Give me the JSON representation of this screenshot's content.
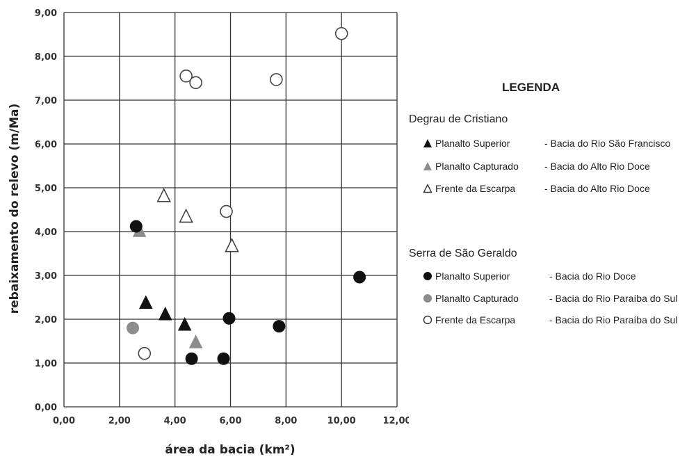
{
  "chart_data": {
    "type": "scatter",
    "xlabel": "área da bacia (km²)",
    "ylabel": "rebaixamento do relevo (m/Ma)",
    "xlim": [
      0,
      12
    ],
    "ylim": [
      0,
      9
    ],
    "x_ticks": [
      "0,00",
      "2,00",
      "4,00",
      "6,00",
      "8,00",
      "10,00",
      "12,00"
    ],
    "y_ticks": [
      "0,00",
      "1,00",
      "2,00",
      "3,00",
      "4,00",
      "5,00",
      "6,00",
      "7,00",
      "8,00",
      "9,00"
    ],
    "grid": true,
    "legend_position": "right",
    "legend_title": "LEGENDA",
    "groups": [
      {
        "name": "Degrau de Cristiano",
        "series": [
          {
            "label": "Planalto Superior",
            "basin": "- Bacia do Rio São Francisco",
            "marker": "triangle",
            "color": "#111111",
            "fill": "solid",
            "points": [
              [
                2.95,
                2.38
              ],
              [
                3.65,
                2.12
              ],
              [
                4.35,
                1.88
              ]
            ]
          },
          {
            "label": "Planalto Capturado",
            "basin": "- Bacia do Alto Rio Doce",
            "marker": "triangle",
            "color": "#8c8c8c",
            "fill": "solid",
            "points": [
              [
                2.72,
                4.02
              ],
              [
                4.75,
                1.48
              ]
            ]
          },
          {
            "label": "Frente da Escarpa",
            "basin": "- Bacia do Alto Rio Doce",
            "marker": "triangle",
            "color": "#444444",
            "fill": "hollow",
            "points": [
              [
                3.6,
                4.82
              ],
              [
                4.4,
                4.35
              ],
              [
                6.05,
                3.68
              ]
            ]
          }
        ]
      },
      {
        "name": "Serra de São Geraldo",
        "series": [
          {
            "label": "Planalto Superior",
            "basin": "- Bacia do Rio Doce",
            "marker": "circle",
            "color": "#111111",
            "fill": "solid",
            "points": [
              [
                2.6,
                4.12
              ],
              [
                4.6,
                1.1
              ],
              [
                5.75,
                1.1
              ],
              [
                5.95,
                2.02
              ],
              [
                7.75,
                1.84
              ],
              [
                10.65,
                2.96
              ]
            ]
          },
          {
            "label": "Planalto Capturado",
            "basin": "- Bacia do Rio Paraíba do Sul",
            "marker": "circle",
            "color": "#8c8c8c",
            "fill": "solid",
            "points": [
              [
                2.48,
                1.8
              ]
            ]
          },
          {
            "label": "Frente da Escarpa",
            "basin": "- Bacia do Rio Paraíba do Sul",
            "marker": "circle",
            "color": "#444444",
            "fill": "hollow",
            "points": [
              [
                2.9,
                1.22
              ],
              [
                4.4,
                7.55
              ],
              [
                4.75,
                7.4
              ],
              [
                5.85,
                4.46
              ],
              [
                7.65,
                7.47
              ],
              [
                10.0,
                8.52
              ]
            ]
          }
        ]
      }
    ]
  }
}
